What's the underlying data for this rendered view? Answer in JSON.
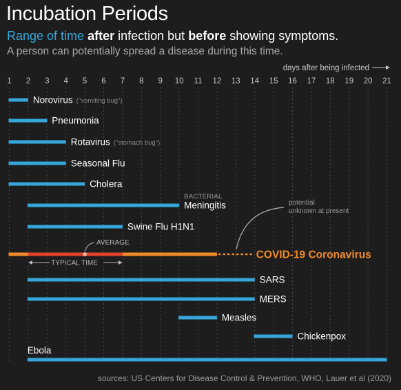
{
  "title": "Incubation Periods",
  "subtitle": {
    "part1": "Range of time",
    "part2": "after",
    "part3": "infection but",
    "part4": "before",
    "part5": "showing symptoms."
  },
  "subtitle2": "A person can potentially spread a disease during this time.",
  "source": "sources: US Centers for Disease Control & Prevention, WHO, Lauer et al (2020)",
  "colors": {
    "bar": "#35a7da",
    "covid": "#f08a2a",
    "covid_typical": "#e2412a",
    "text": "#ffffff",
    "note": "#9a9a9a",
    "grid": "#555555"
  },
  "chart_data": {
    "type": "bar",
    "orientation": "horizontal-range",
    "x_axis_label": "days after being infected",
    "xlim": [
      1,
      21
    ],
    "ticks": [
      1,
      2,
      3,
      4,
      5,
      6,
      7,
      8,
      9,
      10,
      11,
      12,
      13,
      14,
      15,
      16,
      17,
      18,
      19,
      20,
      21
    ],
    "diseases": [
      {
        "name": "Norovirus",
        "note": "(\"vomiting bug\")",
        "start": 1,
        "end": 2
      },
      {
        "name": "Pneumonia",
        "start": 1,
        "end": 3
      },
      {
        "name": "Rotavirus",
        "note": "(\"stomach bug\")",
        "start": 1,
        "end": 4
      },
      {
        "name": "Seasonal Flu",
        "start": 1,
        "end": 4
      },
      {
        "name": "Cholera",
        "start": 1,
        "end": 5
      },
      {
        "name": "Meningitis",
        "prefix": "BACTERIAL",
        "start": 2,
        "end": 10
      },
      {
        "name": "Swine Flu H1N1",
        "start": 2,
        "end": 7
      },
      {
        "name": "COVID-19 Coronavirus",
        "start": 1,
        "end": 12,
        "potential_end": 14,
        "typical_start": 2,
        "typical_end": 7,
        "average": 5,
        "highlight": true
      },
      {
        "name": "SARS",
        "start": 2,
        "end": 14
      },
      {
        "name": "MERS",
        "start": 2,
        "end": 14
      },
      {
        "name": "Measles",
        "start": 10,
        "end": 12
      },
      {
        "name": "Chickenpox",
        "start": 14,
        "end": 16
      },
      {
        "name": "Ebola",
        "start": 2,
        "end": 21,
        "label_above": true
      }
    ],
    "annotations": {
      "average": "AVERAGE",
      "typical": "TYPICAL TIME",
      "potential": [
        "potential",
        "unknown at present"
      ]
    }
  }
}
